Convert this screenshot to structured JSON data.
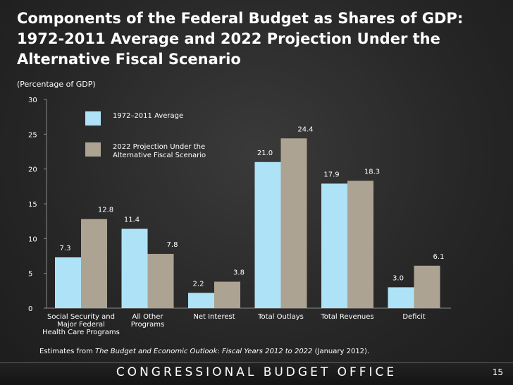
{
  "slide": {
    "title": "Components of the Federal Budget as Shares of GDP: 1972-2011 Average and 2022 Projection Under the Alternative Fiscal Scenario",
    "subtitle": "(Percentage of GDP)",
    "source_prefix": "Estimates from ",
    "source_title": "The Budget and Economic Outlook: Fiscal Years 2012 to 2022",
    "source_suffix": " (January 2012).",
    "footer": "CONGRESSIONAL BUDGET OFFICE",
    "page_number": "15"
  },
  "chart_data": {
    "type": "bar",
    "title": "Components of the Federal Budget as Shares of GDP: 1972-2011 Average and 2022 Projection Under the Alternative Fiscal Scenario",
    "ylabel": "(Percentage of GDP)",
    "ylim": [
      0,
      30
    ],
    "yticks": [
      0,
      5,
      10,
      15,
      20,
      25,
      30
    ],
    "categories": [
      [
        "Social Security and",
        "Major Federal",
        "Health Care Programs"
      ],
      [
        "All Other",
        "Programs"
      ],
      [
        "Net Interest"
      ],
      [
        "Total Outlays"
      ],
      [
        "Total Revenues"
      ],
      [
        "Deficit"
      ]
    ],
    "series": [
      {
        "name": "1972–2011 Average",
        "legend_lines": [
          "1972–2011 Average"
        ],
        "color": "#aee3f7",
        "values": [
          7.3,
          11.4,
          2.2,
          21.0,
          17.9,
          3.0
        ],
        "labels": [
          "7.3",
          "11.4",
          "2.2",
          "21.0",
          "17.9",
          "3.0"
        ]
      },
      {
        "name": "2022 Projection Under the Alternative Fiscal Scenario",
        "legend_lines": [
          "2022 Projection Under the",
          "Alternative Fiscal Scenario"
        ],
        "color": "#ada392",
        "values": [
          12.8,
          7.8,
          3.8,
          24.4,
          18.3,
          6.1
        ],
        "labels": [
          "12.8",
          "7.8",
          "3.8",
          "24.4",
          "18.3",
          "6.1"
        ]
      }
    ],
    "legend_position": "top-left",
    "grid": false
  }
}
